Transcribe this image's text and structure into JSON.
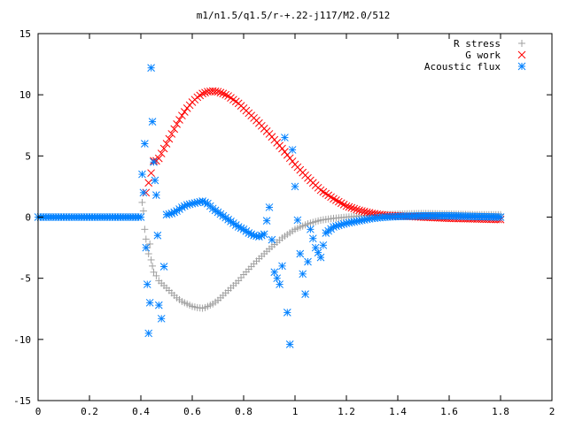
{
  "chart_data": {
    "type": "scatter",
    "title": "m1/n1.5/q1.5/r-+.22-j117/M2.0/512",
    "xlabel": "",
    "ylabel": "",
    "xlim": [
      0,
      2
    ],
    "ylim": [
      -15,
      15
    ],
    "x_ticks": [
      "0",
      "0.2",
      "0.4",
      "0.6",
      "0.8",
      "1",
      "1.2",
      "1.4",
      "1.6",
      "1.8",
      "2"
    ],
    "y_ticks": [
      "15",
      "10",
      "5",
      "0",
      "-5",
      "-10",
      "-15"
    ],
    "grid": false,
    "legend_position": "top-right",
    "series": [
      {
        "name": "R stress",
        "marker": "+",
        "color": "#a0a0a0",
        "x": [
          0.0,
          0.05,
          0.1,
          0.15,
          0.2,
          0.25,
          0.3,
          0.35,
          0.4,
          0.405,
          0.41,
          0.415,
          0.42,
          0.425,
          0.43,
          0.435,
          0.44,
          0.445,
          0.45,
          0.46,
          0.47,
          0.48,
          0.5,
          0.52,
          0.54,
          0.56,
          0.58,
          0.6,
          0.62,
          0.64,
          0.65,
          0.66,
          0.68,
          0.7,
          0.72,
          0.75,
          0.78,
          0.8,
          0.85,
          0.9,
          0.95,
          1.0,
          1.05,
          1.1,
          1.15,
          1.2,
          1.25,
          1.3,
          1.35,
          1.4,
          1.5,
          1.6,
          1.7,
          1.8
        ],
        "y": [
          0,
          0,
          0,
          0,
          0,
          0,
          0,
          0,
          0,
          1.2,
          0.5,
          -1.0,
          -1.8,
          -2.5,
          -3.0,
          -2.2,
          -3.5,
          -4.0,
          -4.5,
          -4.8,
          -5.2,
          -5.4,
          -5.8,
          -6.2,
          -6.6,
          -6.9,
          -7.1,
          -7.3,
          -7.4,
          -7.45,
          -7.4,
          -7.3,
          -7.1,
          -6.8,
          -6.4,
          -5.8,
          -5.2,
          -4.7,
          -3.6,
          -2.6,
          -1.7,
          -1.0,
          -0.55,
          -0.25,
          -0.1,
          0.0,
          0.1,
          0.15,
          0.2,
          0.25,
          0.3,
          0.25,
          0.2,
          0.2
        ]
      },
      {
        "name": "G work",
        "marker": "x",
        "color": "#ff0000",
        "x": [
          0.42,
          0.43,
          0.44,
          0.45,
          0.46,
          0.47,
          0.48,
          0.5,
          0.52,
          0.54,
          0.56,
          0.58,
          0.6,
          0.62,
          0.64,
          0.66,
          0.68,
          0.7,
          0.72,
          0.74,
          0.76,
          0.78,
          0.8,
          0.85,
          0.9,
          0.95,
          1.0,
          1.05,
          1.1,
          1.15,
          1.2,
          1.25,
          1.3,
          1.35,
          1.4,
          1.45,
          1.5,
          1.6,
          1.7,
          1.8
        ],
        "y": [
          2.0,
          2.8,
          3.6,
          4.6,
          4.6,
          4.8,
          5.2,
          6.0,
          6.8,
          7.6,
          8.3,
          8.9,
          9.4,
          9.8,
          10.1,
          10.25,
          10.3,
          10.25,
          10.1,
          9.9,
          9.6,
          9.3,
          8.9,
          7.9,
          6.8,
          5.6,
          4.3,
          3.2,
          2.2,
          1.5,
          0.9,
          0.55,
          0.3,
          0.15,
          0.1,
          0.05,
          0.0,
          -0.1,
          -0.15,
          -0.2
        ]
      },
      {
        "name": "Acoustic flux",
        "marker": "*",
        "color": "#0080ff",
        "x": [
          0.0,
          0.05,
          0.1,
          0.15,
          0.2,
          0.25,
          0.3,
          0.35,
          0.4,
          0.405,
          0.41,
          0.415,
          0.42,
          0.425,
          0.43,
          0.435,
          0.44,
          0.445,
          0.45,
          0.455,
          0.46,
          0.465,
          0.47,
          0.48,
          0.5,
          0.52,
          0.54,
          0.56,
          0.58,
          0.6,
          0.62,
          0.64,
          0.66,
          0.68,
          0.7,
          0.72,
          0.74,
          0.76,
          0.78,
          0.8,
          0.82,
          0.84,
          0.86,
          0.88,
          0.9,
          0.92,
          0.94,
          0.95,
          0.96,
          0.97,
          0.98,
          0.99,
          1.0,
          1.02,
          1.04,
          1.06,
          1.08,
          1.1,
          1.12,
          1.15,
          1.2,
          1.25,
          1.3,
          1.35,
          1.4,
          1.5,
          1.6,
          1.7,
          1.8
        ],
        "y": [
          0,
          0,
          0,
          0,
          0,
          0,
          0,
          0,
          0,
          3.5,
          2.0,
          6.0,
          -2.5,
          -5.5,
          -9.5,
          -7.0,
          12.2,
          7.8,
          4.5,
          3.0,
          1.8,
          -1.5,
          -7.2,
          -8.3,
          0.2,
          0.3,
          0.5,
          0.8,
          1.0,
          1.1,
          1.2,
          1.3,
          1.1,
          0.7,
          0.4,
          0.1,
          -0.2,
          -0.5,
          -0.8,
          -1.0,
          -1.3,
          -1.5,
          -1.6,
          -1.4,
          0.8,
          -4.5,
          -5.5,
          -4.0,
          6.5,
          -7.8,
          -10.4,
          5.5,
          2.5,
          -3.0,
          -6.3,
          -1.0,
          -2.5,
          -3.3,
          -1.3,
          -0.8,
          -0.5,
          -0.3,
          -0.1,
          0.0,
          0.05,
          0.1,
          0.1,
          0.05,
          0.0
        ]
      }
    ]
  }
}
